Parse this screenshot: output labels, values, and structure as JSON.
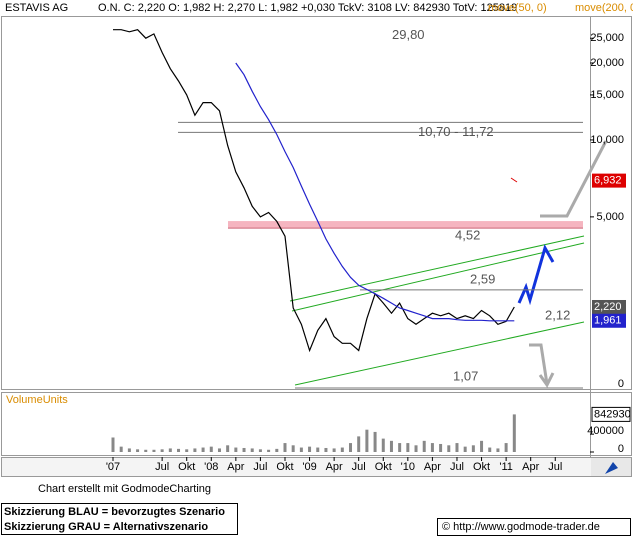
{
  "chart_data": [
    {
      "type": "line",
      "title": "ESTAVIS AG",
      "subtitle": "O.N. C: 2,220 O: 1,982 H: 2,270 L: 1,982 +0,030 TckV: 3108 LV: 842930 TotV: 125819",
      "indicator_labels": [
        "move(50, 0)",
        "move(200, 0)"
      ],
      "log_scale": true,
      "categories": [
        "'07",
        null,
        null,
        null,
        null,
        null,
        "Jul",
        null,
        null,
        "Okt",
        null,
        null,
        "'08",
        null,
        null,
        "Apr",
        null,
        null,
        "Jul",
        null,
        null,
        "Okt",
        null,
        null,
        "'09",
        null,
        null,
        "Apr",
        null,
        null,
        "Jul",
        null,
        null,
        "Okt",
        null,
        null,
        "'10",
        null,
        null,
        "Apr",
        null,
        null,
        "Jul",
        null,
        null,
        "Okt",
        null,
        null,
        "'11",
        null,
        null,
        "Apr",
        null,
        null,
        "Jul",
        null,
        null,
        null,
        null
      ],
      "series": [
        {
          "color": "#000000",
          "values": [
            27,
            27,
            26.5,
            27,
            25,
            26,
            22,
            19,
            17,
            15,
            12.5,
            14,
            14,
            13,
            9.5,
            7.5,
            6.5,
            5.5,
            5.0,
            5.2,
            4.8,
            4.2,
            2.2,
            1.9,
            1.5,
            1.8,
            2.0,
            1.7,
            1.6,
            1.6,
            1.5,
            2.0,
            2.5,
            2.3,
            2.1,
            2.3,
            2.0,
            1.9,
            2.0,
            2.1,
            2.05,
            2.1,
            2.0,
            2.05,
            2.0,
            2.15,
            2.05,
            1.9,
            1.95,
            2.22,
            null,
            null,
            null,
            null,
            null,
            null,
            null,
            null,
            null
          ]
        },
        {
          "color": "#2222cc",
          "values": [
            null,
            null,
            null,
            null,
            null,
            null,
            null,
            null,
            null,
            null,
            null,
            null,
            null,
            null,
            null,
            20,
            18,
            15.5,
            13.5,
            12,
            10.5,
            9,
            7.8,
            6.6,
            5.6,
            4.8,
            4.1,
            3.6,
            3.2,
            2.9,
            2.7,
            2.6,
            2.5,
            2.4,
            2.3,
            2.2,
            2.15,
            2.1,
            2.05,
            2.0,
            2.0,
            2.0,
            1.98,
            1.97,
            1.97,
            1.97,
            1.96,
            1.96,
            1.96,
            1.961,
            null,
            null,
            null,
            null,
            null,
            null,
            null,
            null,
            null
          ]
        }
      ],
      "ylim": [
        1.07,
        30
      ],
      "yticks": [
        {
          "value": 25,
          "label": "25,000"
        },
        {
          "value": 20,
          "label": "20,000"
        },
        {
          "value": 15,
          "label": "15,000"
        },
        {
          "value": 10,
          "label": "10,000"
        },
        {
          "value": 5,
          "label": "5,000"
        }
      ],
      "bottom_label": "0",
      "annotations": [
        {
          "text": "29,80",
          "value": 29.8
        },
        {
          "text": "10,70 - 11,72",
          "values": [
            10.7,
            11.72
          ]
        },
        {
          "text": "4,52",
          "value": 4.52
        },
        {
          "text": "2,59",
          "value": 2.59
        },
        {
          "text": "2,12",
          "value": 2.12
        },
        {
          "text": "1,07",
          "value": 1.07
        }
      ],
      "price_tags": [
        {
          "label": "6,932",
          "value": 6.932,
          "color": "#dd0000"
        },
        {
          "label": "2,220",
          "value": 2.22,
          "color": "#555555"
        },
        {
          "label": "1,961",
          "value": 1.961,
          "color": "#2222cc"
        }
      ]
    },
    {
      "type": "bar",
      "title": "VolumeUnits",
      "color": "#888888",
      "values": [
        325000,
        120000,
        80000,
        60000,
        50000,
        50000,
        60000,
        80000,
        70000,
        60000,
        80000,
        100000,
        120000,
        80000,
        150000,
        100000,
        90000,
        80000,
        60000,
        50000,
        70000,
        200000,
        150000,
        100000,
        120000,
        100000,
        90000,
        80000,
        100000,
        200000,
        350000,
        500000,
        450000,
        300000,
        250000,
        200000,
        200000,
        150000,
        250000,
        200000,
        180000,
        150000,
        200000,
        120000,
        150000,
        250000,
        100000,
        80000,
        200000,
        842930,
        null,
        null,
        null,
        null,
        null,
        null,
        null,
        null,
        null
      ],
      "ylim": [
        0,
        1300000
      ],
      "yticks": [
        0,
        400000
      ]
    }
  ],
  "footer": {
    "credit": "Chart erstellt mit GodmodeCharting",
    "legend_lines": [
      "Skizzierung BLAU = bevorzugtes Szenario",
      "Skizzierung GRAU = Alternativszenario"
    ],
    "copyright": "© http://www.godmode-trader.de"
  }
}
